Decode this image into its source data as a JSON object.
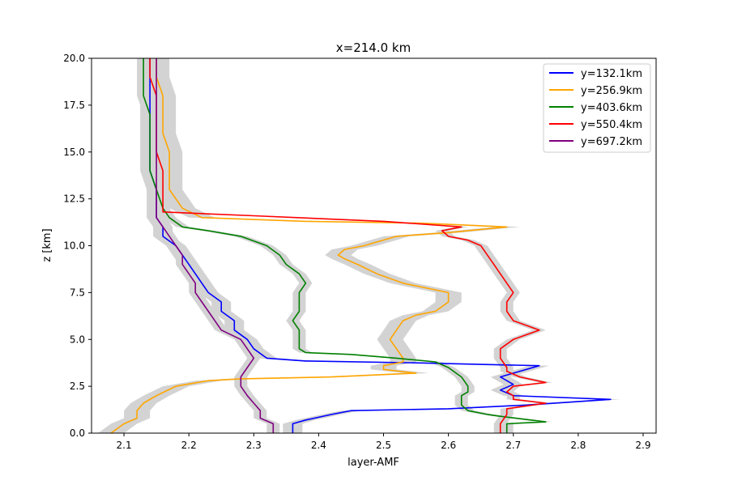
{
  "chart_data": {
    "type": "line",
    "title": "x=214.0 km",
    "xlabel": "layer-AMF",
    "ylabel": "z [km]",
    "xlim": [
      2.05,
      2.92
    ],
    "ylim": [
      0,
      20
    ],
    "xticks": [
      "2.1",
      "2.2",
      "2.3",
      "2.4",
      "2.5",
      "2.6",
      "2.7",
      "2.8",
      "2.9"
    ],
    "yticks": [
      "0.0",
      "2.5",
      "5.0",
      "7.5",
      "10.0",
      "12.5",
      "15.0",
      "17.5",
      "20.0"
    ],
    "grid": false,
    "legend_position": "top-right",
    "uncertainty_band": "light gray shaded band around each series",
    "series": [
      {
        "name": "y=132.1km",
        "color": "#0000ff",
        "band_halfwidth": 0.015,
        "points": [
          [
            2.36,
            0.0
          ],
          [
            2.36,
            0.5
          ],
          [
            2.38,
            0.7
          ],
          [
            2.42,
            1.0
          ],
          [
            2.45,
            1.2
          ],
          [
            2.6,
            1.3
          ],
          [
            2.72,
            1.5
          ],
          [
            2.85,
            1.8
          ],
          [
            2.7,
            2.0
          ],
          [
            2.68,
            2.3
          ],
          [
            2.7,
            2.6
          ],
          [
            2.68,
            3.0
          ],
          [
            2.7,
            3.2
          ],
          [
            2.74,
            3.6
          ],
          [
            2.55,
            3.75
          ],
          [
            2.38,
            3.85
          ],
          [
            2.32,
            4.0
          ],
          [
            2.3,
            4.5
          ],
          [
            2.29,
            5.0
          ],
          [
            2.27,
            5.5
          ],
          [
            2.27,
            6.0
          ],
          [
            2.25,
            6.5
          ],
          [
            2.25,
            7.0
          ],
          [
            2.23,
            7.5
          ],
          [
            2.22,
            8.0
          ],
          [
            2.21,
            8.5
          ],
          [
            2.2,
            9.0
          ],
          [
            2.19,
            9.5
          ],
          [
            2.18,
            10.0
          ],
          [
            2.16,
            10.5
          ],
          [
            2.16,
            11.0
          ],
          [
            2.15,
            11.5
          ],
          [
            2.15,
            12.0
          ],
          [
            2.15,
            13.0
          ],
          [
            2.14,
            14.0
          ],
          [
            2.14,
            15.0
          ],
          [
            2.14,
            16.0
          ],
          [
            2.14,
            17.0
          ],
          [
            2.14,
            18.0
          ],
          [
            2.14,
            19.0
          ],
          [
            2.14,
            20.0
          ]
        ]
      },
      {
        "name": "y=256.9km",
        "color": "#ffa500",
        "band_halfwidth": 0.02,
        "points": [
          [
            2.08,
            0.0
          ],
          [
            2.1,
            0.5
          ],
          [
            2.12,
            0.8
          ],
          [
            2.12,
            1.2
          ],
          [
            2.13,
            1.6
          ],
          [
            2.15,
            2.0
          ],
          [
            2.18,
            2.5
          ],
          [
            2.23,
            2.8
          ],
          [
            2.28,
            2.9
          ],
          [
            2.42,
            3.0
          ],
          [
            2.55,
            3.2
          ],
          [
            2.5,
            3.4
          ],
          [
            2.5,
            3.6
          ],
          [
            2.53,
            3.8
          ],
          [
            2.53,
            4.0
          ],
          [
            2.52,
            4.5
          ],
          [
            2.51,
            5.0
          ],
          [
            2.52,
            5.5
          ],
          [
            2.53,
            6.0
          ],
          [
            2.55,
            6.3
          ],
          [
            2.58,
            6.5
          ],
          [
            2.6,
            7.0
          ],
          [
            2.6,
            7.5
          ],
          [
            2.53,
            8.0
          ],
          [
            2.49,
            8.5
          ],
          [
            2.46,
            9.0
          ],
          [
            2.44,
            9.3
          ],
          [
            2.43,
            9.5
          ],
          [
            2.44,
            9.8
          ],
          [
            2.47,
            10.0
          ],
          [
            2.52,
            10.5
          ],
          [
            2.6,
            10.7
          ],
          [
            2.69,
            11.0
          ],
          [
            2.56,
            11.2
          ],
          [
            2.38,
            11.3
          ],
          [
            2.22,
            11.5
          ],
          [
            2.19,
            12.0
          ],
          [
            2.18,
            12.5
          ],
          [
            2.17,
            13.0
          ],
          [
            2.17,
            14.0
          ],
          [
            2.17,
            15.0
          ],
          [
            2.16,
            16.0
          ],
          [
            2.16,
            17.0
          ],
          [
            2.16,
            18.0
          ],
          [
            2.15,
            19.0
          ],
          [
            2.15,
            20.0
          ]
        ]
      },
      {
        "name": "y=403.6km",
        "color": "#008000",
        "band_halfwidth": 0.01,
        "points": [
          [
            2.69,
            0.0
          ],
          [
            2.69,
            0.5
          ],
          [
            2.75,
            0.6
          ],
          [
            2.68,
            0.9
          ],
          [
            2.66,
            1.0
          ],
          [
            2.63,
            1.2
          ],
          [
            2.62,
            1.5
          ],
          [
            2.62,
            2.0
          ],
          [
            2.63,
            2.2
          ],
          [
            2.63,
            2.5
          ],
          [
            2.62,
            3.0
          ],
          [
            2.6,
            3.5
          ],
          [
            2.58,
            3.8
          ],
          [
            2.52,
            4.0
          ],
          [
            2.45,
            4.2
          ],
          [
            2.38,
            4.3
          ],
          [
            2.37,
            4.5
          ],
          [
            2.37,
            5.0
          ],
          [
            2.37,
            5.5
          ],
          [
            2.36,
            6.0
          ],
          [
            2.37,
            6.5
          ],
          [
            2.37,
            7.0
          ],
          [
            2.37,
            7.5
          ],
          [
            2.38,
            8.0
          ],
          [
            2.37,
            8.5
          ],
          [
            2.35,
            9.0
          ],
          [
            2.34,
            9.5
          ],
          [
            2.32,
            10.0
          ],
          [
            2.28,
            10.5
          ],
          [
            2.23,
            10.8
          ],
          [
            2.19,
            11.0
          ],
          [
            2.17,
            11.5
          ],
          [
            2.16,
            12.0
          ],
          [
            2.15,
            13.0
          ],
          [
            2.14,
            14.0
          ],
          [
            2.14,
            15.0
          ],
          [
            2.14,
            16.0
          ],
          [
            2.14,
            17.0
          ],
          [
            2.13,
            18.0
          ],
          [
            2.13,
            19.0
          ],
          [
            2.13,
            20.0
          ]
        ]
      },
      {
        "name": "y=550.4km",
        "color": "#ff0000",
        "band_halfwidth": 0.01,
        "points": [
          [
            2.68,
            0.0
          ],
          [
            2.68,
            0.5
          ],
          [
            2.69,
            1.0
          ],
          [
            2.69,
            1.3
          ],
          [
            2.75,
            1.6
          ],
          [
            2.7,
            1.8
          ],
          [
            2.7,
            2.0
          ],
          [
            2.69,
            2.2
          ],
          [
            2.7,
            2.5
          ],
          [
            2.75,
            2.7
          ],
          [
            2.71,
            3.0
          ],
          [
            2.69,
            3.3
          ],
          [
            2.69,
            3.5
          ],
          [
            2.68,
            4.0
          ],
          [
            2.68,
            4.5
          ],
          [
            2.7,
            5.0
          ],
          [
            2.74,
            5.5
          ],
          [
            2.7,
            6.0
          ],
          [
            2.69,
            6.5
          ],
          [
            2.69,
            7.0
          ],
          [
            2.7,
            7.5
          ],
          [
            2.69,
            8.0
          ],
          [
            2.68,
            8.5
          ],
          [
            2.67,
            9.0
          ],
          [
            2.66,
            9.5
          ],
          [
            2.65,
            10.0
          ],
          [
            2.63,
            10.3
          ],
          [
            2.6,
            10.5
          ],
          [
            2.59,
            10.8
          ],
          [
            2.62,
            11.0
          ],
          [
            2.5,
            11.3
          ],
          [
            2.3,
            11.6
          ],
          [
            2.16,
            11.8
          ],
          [
            2.16,
            12.0
          ],
          [
            2.16,
            13.0
          ],
          [
            2.16,
            14.0
          ],
          [
            2.15,
            15.0
          ],
          [
            2.15,
            16.0
          ],
          [
            2.15,
            17.0
          ],
          [
            2.15,
            18.0
          ],
          [
            2.14,
            19.0
          ],
          [
            2.14,
            20.0
          ]
        ]
      },
      {
        "name": "y=697.2km",
        "color": "#800080",
        "band_halfwidth": 0.01,
        "points": [
          [
            2.33,
            0.0
          ],
          [
            2.33,
            0.5
          ],
          [
            2.31,
            0.8
          ],
          [
            2.31,
            1.2
          ],
          [
            2.3,
            1.6
          ],
          [
            2.29,
            2.0
          ],
          [
            2.28,
            2.5
          ],
          [
            2.28,
            3.0
          ],
          [
            2.29,
            3.5
          ],
          [
            2.3,
            4.0
          ],
          [
            2.29,
            4.5
          ],
          [
            2.28,
            5.0
          ],
          [
            2.25,
            5.5
          ],
          [
            2.24,
            6.0
          ],
          [
            2.23,
            6.5
          ],
          [
            2.22,
            7.0
          ],
          [
            2.21,
            7.5
          ],
          [
            2.21,
            8.0
          ],
          [
            2.2,
            8.5
          ],
          [
            2.19,
            9.0
          ],
          [
            2.19,
            9.5
          ],
          [
            2.18,
            10.0
          ],
          [
            2.17,
            10.5
          ],
          [
            2.16,
            11.0
          ],
          [
            2.15,
            11.5
          ],
          [
            2.15,
            12.0
          ],
          [
            2.15,
            13.0
          ],
          [
            2.15,
            14.0
          ],
          [
            2.15,
            15.0
          ],
          [
            2.15,
            16.0
          ],
          [
            2.15,
            17.0
          ],
          [
            2.15,
            18.0
          ],
          [
            2.15,
            19.0
          ],
          [
            2.15,
            20.0
          ]
        ]
      }
    ]
  }
}
